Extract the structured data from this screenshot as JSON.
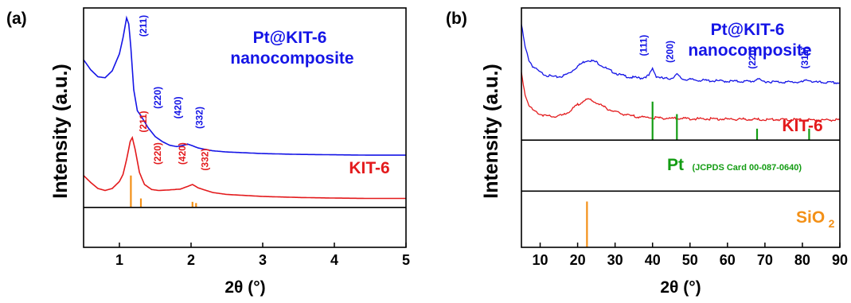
{
  "colors": {
    "blue": "#1515e6",
    "red": "#e31a1c",
    "green": "#139c13",
    "orange": "#f39017",
    "axis": "#000000"
  },
  "chart_data": [
    {
      "panel_label": "(a)",
      "type": "line",
      "xlabel": "2θ (°)",
      "ylabel": "Intensity (a.u.)",
      "xlim": [
        0.5,
        5
      ],
      "ylim": [
        -2,
        10
      ],
      "xticks": [
        1,
        2,
        3,
        4,
        5
      ],
      "tick_labels": [
        "1",
        "2",
        "3",
        "4",
        "5"
      ],
      "separator_y": 0,
      "grid": false,
      "series": [
        {
          "name": "Pt@KIT-6 nanocomposite",
          "label_lines": [
            "Pt@KIT-6",
            "nanocomposite"
          ],
          "color_key": "blue",
          "x": [
            0.5,
            0.6,
            0.7,
            0.8,
            0.9,
            1.0,
            1.05,
            1.1,
            1.13,
            1.16,
            1.2,
            1.25,
            1.3,
            1.4,
            1.5,
            1.6,
            1.7,
            1.8,
            1.9,
            1.95,
            2.0,
            2.1,
            2.3,
            2.5,
            3.0,
            3.5,
            4.0,
            4.5,
            5.0
          ],
          "y": [
            7.4,
            6.9,
            6.55,
            6.5,
            6.85,
            7.7,
            8.5,
            9.5,
            9.2,
            8.0,
            5.9,
            4.85,
            4.6,
            4.0,
            3.55,
            3.3,
            3.12,
            3.05,
            3.12,
            3.18,
            3.12,
            2.98,
            2.84,
            2.78,
            2.7,
            2.66,
            2.64,
            2.62,
            2.62
          ],
          "peak_labels": [
            {
              "text": "(211)",
              "x": 1.38,
              "y": 9.1
            },
            {
              "text": "(220)",
              "x": 1.58,
              "y": 5.5
            },
            {
              "text": "(420)",
              "x": 1.86,
              "y": 5.0
            },
            {
              "text": "(332)",
              "x": 2.16,
              "y": 4.5
            }
          ]
        },
        {
          "name": "KIT-6",
          "label_lines": [
            "KIT-6"
          ],
          "color_key": "red",
          "x": [
            0.5,
            0.6,
            0.7,
            0.8,
            0.9,
            1.0,
            1.05,
            1.1,
            1.15,
            1.18,
            1.22,
            1.28,
            1.35,
            1.45,
            1.55,
            1.7,
            1.85,
            1.95,
            2.02,
            2.1,
            2.3,
            2.5,
            3.0,
            3.5,
            4.0,
            4.5,
            5.0
          ],
          "y": [
            1.6,
            1.25,
            0.95,
            0.85,
            0.95,
            1.3,
            1.65,
            2.4,
            3.3,
            3.5,
            2.9,
            1.75,
            1.15,
            0.9,
            0.85,
            0.88,
            0.92,
            1.05,
            1.15,
            0.98,
            0.75,
            0.65,
            0.55,
            0.5,
            0.47,
            0.45,
            0.45
          ],
          "peak_labels": [
            {
              "text": "(211)",
              "x": 1.38,
              "y": 4.3
            },
            {
              "text": "(220)",
              "x": 1.58,
              "y": 2.7
            },
            {
              "text": "(420)",
              "x": 1.92,
              "y": 2.7
            },
            {
              "text": "(332)",
              "x": 2.24,
              "y": 2.4
            }
          ]
        }
      ],
      "reference_sticks": [
        {
          "x": 1.16,
          "height": 1.6,
          "color_key": "orange"
        },
        {
          "x": 1.3,
          "height": 0.45,
          "color_key": "orange"
        },
        {
          "x": 2.02,
          "height": 0.28,
          "color_key": "orange"
        },
        {
          "x": 2.07,
          "height": 0.22,
          "color_key": "orange"
        }
      ]
    },
    {
      "panel_label": "(b)",
      "type": "line",
      "xlabel": "2θ (°)",
      "ylabel": "Intensity (a.u.)",
      "xlim": [
        5,
        90
      ],
      "ylim": [
        -1.5,
        10
      ],
      "xticks": [
        10,
        20,
        30,
        40,
        50,
        60,
        70,
        80,
        90
      ],
      "tick_labels": [
        "10",
        "20",
        "30",
        "40",
        "50",
        "60",
        "70",
        "80",
        "90"
      ],
      "separators_y": [
        1.2,
        3.65
      ],
      "grid": false,
      "series": [
        {
          "name": "Pt@KIT-6 nanocomposite",
          "label_lines": [
            "Pt@KIT-6",
            "nanocomposite"
          ],
          "color_key": "blue",
          "x": [
            5,
            6,
            7,
            8,
            10,
            12,
            14,
            16,
            18,
            20,
            22,
            23,
            25,
            28,
            31,
            34,
            37,
            39,
            40,
            41,
            43,
            45,
            46.5,
            48,
            52,
            56,
            60,
            64,
            67,
            68,
            69,
            72,
            76,
            80,
            81.5,
            83,
            86,
            90
          ],
          "y": [
            9.2,
            8.1,
            7.5,
            7.2,
            6.9,
            6.75,
            6.68,
            6.72,
            6.9,
            7.2,
            7.45,
            7.5,
            7.4,
            7.05,
            6.8,
            6.67,
            6.63,
            6.75,
            7.08,
            6.72,
            6.6,
            6.62,
            6.8,
            6.58,
            6.53,
            6.5,
            6.48,
            6.47,
            6.48,
            6.62,
            6.48,
            6.45,
            6.44,
            6.44,
            6.56,
            6.43,
            6.42,
            6.4
          ],
          "peak_labels": [
            {
              "text": "(111)",
              "x": 38.5,
              "y": 8.2
            },
            {
              "text": "(200)",
              "x": 45.5,
              "y": 7.9
            },
            {
              "text": "(220)",
              "x": 67.5,
              "y": 7.6
            },
            {
              "text": "(311)",
              "x": 81.5,
              "y": 7.6
            }
          ]
        },
        {
          "name": "KIT-6",
          "label_lines": [
            "KIT-6"
          ],
          "color_key": "red",
          "x": [
            5,
            6,
            7,
            8,
            10,
            12,
            14,
            16,
            18,
            20,
            22,
            23,
            25,
            28,
            31,
            34,
            37,
            40,
            45,
            50,
            55,
            60,
            65,
            70,
            75,
            80,
            85,
            90
          ],
          "y": [
            6.85,
            5.85,
            5.35,
            5.1,
            4.9,
            4.8,
            4.78,
            4.85,
            5.05,
            5.35,
            5.58,
            5.6,
            5.45,
            5.15,
            4.95,
            4.82,
            4.76,
            4.72,
            4.7,
            4.68,
            4.67,
            4.66,
            4.65,
            4.64,
            4.64,
            4.63,
            4.62,
            4.62
          ],
          "peak_labels": []
        }
      ],
      "reference_sticks": [
        {
          "x": 40.0,
          "height": 1.85,
          "base": 3.65,
          "color_key": "green"
        },
        {
          "x": 46.5,
          "height": 1.25,
          "base": 3.65,
          "color_key": "green"
        },
        {
          "x": 67.9,
          "height": 0.55,
          "base": 3.65,
          "color_key": "green"
        },
        {
          "x": 81.8,
          "height": 0.55,
          "base": 3.65,
          "color_key": "green"
        },
        {
          "x": 22.5,
          "height": 2.2,
          "base": -1.5,
          "color_key": "orange"
        }
      ],
      "reference_labels": [
        {
          "text": "Pt",
          "subtext": "(JCPDS Card 00-087-0640)",
          "color_key": "green"
        },
        {
          "text": "SiO",
          "subscript": "2",
          "color_key": "orange"
        }
      ]
    }
  ]
}
